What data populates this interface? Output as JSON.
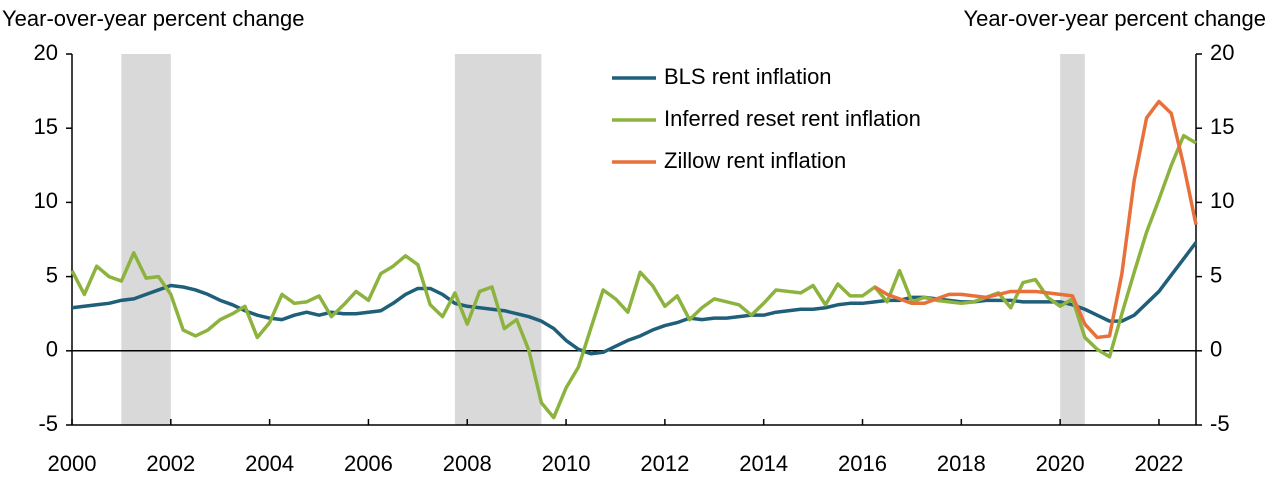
{
  "chart_data": {
    "type": "line",
    "ylabel": "Year-over-year percent change",
    "y2label": "Year-over-year percent change",
    "x": [
      2000,
      2000.25,
      2000.5,
      2000.75,
      2001,
      2001.25,
      2001.5,
      2001.75,
      2002,
      2002.25,
      2002.5,
      2002.75,
      2003,
      2003.25,
      2003.5,
      2003.75,
      2004,
      2004.25,
      2004.5,
      2004.75,
      2005,
      2005.25,
      2005.5,
      2005.75,
      2006,
      2006.25,
      2006.5,
      2006.75,
      2007,
      2007.25,
      2007.5,
      2007.75,
      2008,
      2008.25,
      2008.5,
      2008.75,
      2009,
      2009.25,
      2009.5,
      2009.75,
      2010,
      2010.25,
      2010.5,
      2010.75,
      2011,
      2011.25,
      2011.5,
      2011.75,
      2012,
      2012.25,
      2012.5,
      2012.75,
      2013,
      2013.25,
      2013.5,
      2013.75,
      2014,
      2014.25,
      2014.5,
      2014.75,
      2015,
      2015.25,
      2015.5,
      2015.75,
      2016,
      2016.25,
      2016.5,
      2016.75,
      2017,
      2017.25,
      2017.5,
      2017.75,
      2018,
      2018.25,
      2018.5,
      2018.75,
      2019,
      2019.25,
      2019.5,
      2019.75,
      2020,
      2020.25,
      2020.5,
      2020.75,
      2021,
      2021.25,
      2021.5,
      2021.75,
      2022,
      2022.25,
      2022.5,
      2022.75
    ],
    "series": [
      {
        "name": "BLS rent inflation",
        "color": "#1f5f7a",
        "values": [
          2.9,
          3.0,
          3.1,
          3.2,
          3.4,
          3.5,
          3.8,
          4.1,
          4.4,
          4.3,
          4.1,
          3.8,
          3.4,
          3.1,
          2.7,
          2.4,
          2.2,
          2.1,
          2.4,
          2.6,
          2.4,
          2.6,
          2.5,
          2.5,
          2.6,
          2.7,
          3.2,
          3.8,
          4.2,
          4.2,
          3.8,
          3.2,
          3.0,
          2.9,
          2.8,
          2.7,
          2.5,
          2.3,
          2.0,
          1.5,
          0.7,
          0.1,
          -0.2,
          -0.1,
          0.3,
          0.7,
          1.0,
          1.4,
          1.7,
          1.9,
          2.2,
          2.1,
          2.2,
          2.2,
          2.3,
          2.4,
          2.4,
          2.6,
          2.7,
          2.8,
          2.8,
          2.9,
          3.1,
          3.2,
          3.2,
          3.3,
          3.4,
          3.4,
          3.6,
          3.6,
          3.5,
          3.4,
          3.3,
          3.3,
          3.4,
          3.4,
          3.4,
          3.3,
          3.3,
          3.3,
          3.3,
          3.1,
          2.8,
          2.4,
          2.0,
          2.0,
          2.4,
          3.2,
          4.0,
          5.1,
          6.2,
          7.3
        ]
      },
      {
        "name": "Inferred reset rent inflation",
        "color": "#8db33f",
        "values": [
          5.4,
          3.8,
          5.7,
          5.0,
          4.7,
          6.6,
          4.9,
          5.0,
          3.8,
          1.4,
          1.0,
          1.4,
          2.1,
          2.5,
          3.0,
          0.9,
          1.9,
          3.8,
          3.2,
          3.3,
          3.7,
          2.3,
          3.1,
          4.0,
          3.4,
          5.2,
          5.7,
          6.4,
          5.8,
          3.1,
          2.3,
          3.9,
          1.8,
          4.0,
          4.3,
          1.5,
          2.1,
          0.0,
          -3.5,
          -4.5,
          -2.5,
          -1.1,
          1.5,
          4.1,
          3.5,
          2.6,
          5.3,
          4.4,
          3.0,
          3.7,
          2.1,
          2.9,
          3.5,
          3.3,
          3.1,
          2.4,
          3.2,
          4.1,
          4.0,
          3.9,
          4.4,
          3.1,
          4.5,
          3.7,
          3.7,
          4.3,
          3.3,
          5.4,
          3.3,
          3.6,
          3.4,
          3.3,
          3.2,
          3.3,
          3.6,
          3.9,
          2.9,
          4.6,
          4.8,
          3.6,
          3.0,
          3.5,
          0.9,
          0.1,
          -0.4,
          2.5,
          5.3,
          8.0,
          10.2,
          12.5,
          14.5,
          14.0
        ]
      },
      {
        "name": "Zillow rent inflation",
        "color": "#e8703a",
        "values": [
          null,
          null,
          null,
          null,
          null,
          null,
          null,
          null,
          null,
          null,
          null,
          null,
          null,
          null,
          null,
          null,
          null,
          null,
          null,
          null,
          null,
          null,
          null,
          null,
          null,
          null,
          null,
          null,
          null,
          null,
          null,
          null,
          null,
          null,
          null,
          null,
          null,
          null,
          null,
          null,
          null,
          null,
          null,
          null,
          null,
          null,
          null,
          null,
          null,
          null,
          null,
          null,
          null,
          null,
          null,
          null,
          null,
          null,
          null,
          null,
          null,
          null,
          null,
          null,
          null,
          4.3,
          3.8,
          3.5,
          3.2,
          3.2,
          3.5,
          3.8,
          3.8,
          3.7,
          3.6,
          3.8,
          4.0,
          4.0,
          4.0,
          3.9,
          3.8,
          3.7,
          1.8,
          0.9,
          1.0,
          5.2,
          11.5,
          15.7,
          16.8,
          16.0,
          12.5,
          8.5
        ]
      }
    ],
    "recessions": [
      [
        2001,
        2002
      ],
      [
        2007.75,
        2009.5
      ],
      [
        2020,
        2020.5
      ]
    ],
    "recession_color": "#d9d9d9",
    "xlim": [
      2000,
      2022.75
    ],
    "xticks": [
      2000,
      2002,
      2004,
      2006,
      2008,
      2010,
      2012,
      2014,
      2016,
      2018,
      2020,
      2022
    ],
    "ylim": [
      -5,
      20
    ],
    "yticks": [
      -5,
      0,
      5,
      10,
      15,
      20
    ],
    "y2lim": [
      -5,
      20
    ],
    "y2ticks": [
      -5,
      0,
      5,
      10,
      15,
      20
    ],
    "legend": "upper center"
  }
}
